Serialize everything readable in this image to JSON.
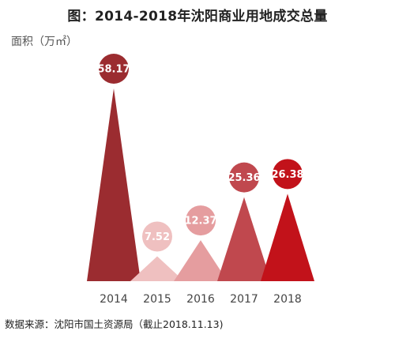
{
  "chart_data": {
    "type": "bar",
    "title": "图：2014-2018年沈阳商业用地成交总量",
    "ylabel": "面积（万㎡）",
    "categories": [
      "2014",
      "2015",
      "2016",
      "2017",
      "2018"
    ],
    "values": [
      58.17,
      7.52,
      12.37,
      25.36,
      26.38
    ],
    "value_labels": [
      "58.17",
      "7.52",
      "12.37",
      "25.36",
      "26.38"
    ],
    "colors": [
      "#9b2c30",
      "#efc0c0",
      "#e59d9f",
      "#c0484e",
      "#c2121a"
    ],
    "ylim": [
      0,
      58.17
    ],
    "grid": false,
    "legend": "none"
  },
  "source": "数据来源：沈阳市国土资源局（截止2018.11.13)"
}
